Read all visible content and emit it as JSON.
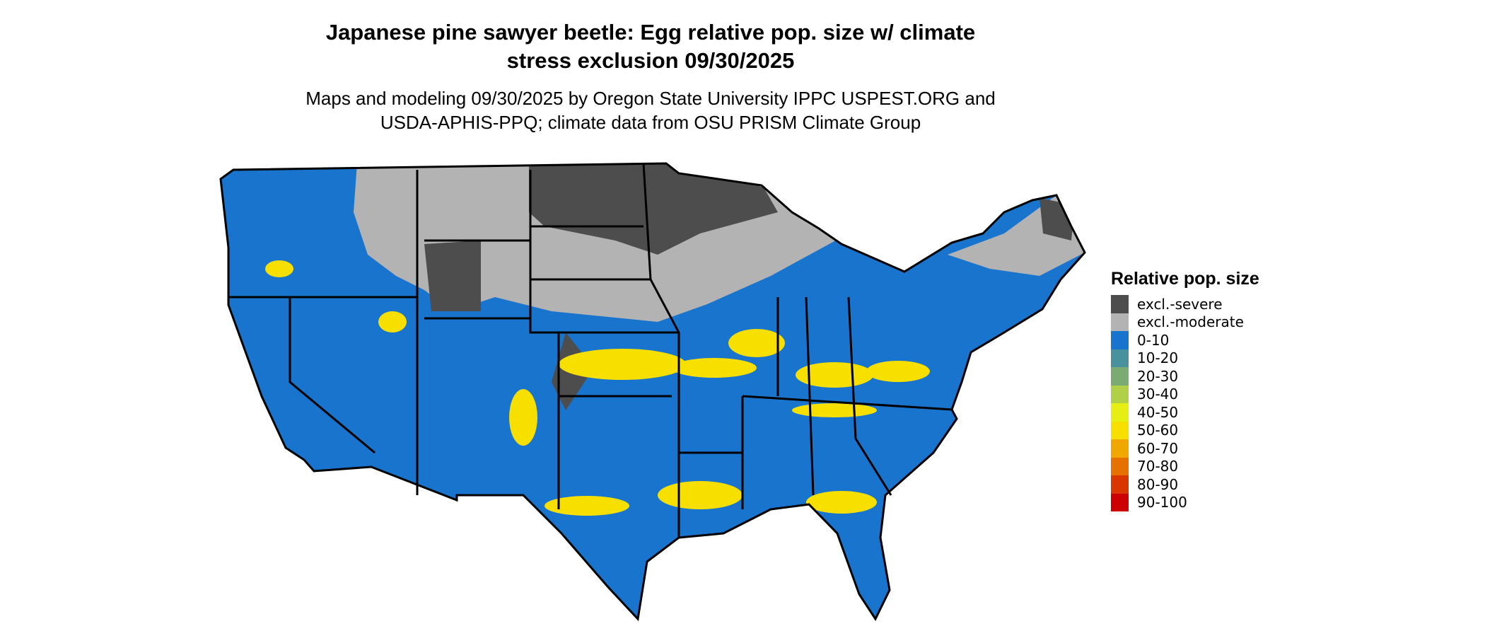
{
  "title_line1": "Japanese pine sawyer beetle: Egg relative pop. size w/ climate",
  "title_line2": "stress exclusion 09/30/2025",
  "subtitle_line1": "Maps and modeling 09/30/2025 by Oregon State University IPPC USPEST.ORG and",
  "subtitle_line2": "USDA-APHIS-PPQ; climate data from OSU PRISM Climate Group",
  "legend": {
    "title": "Relative pop. size",
    "items": [
      {
        "label": "excl.-severe",
        "color": "#4d4d4d"
      },
      {
        "label": "excl.-moderate",
        "color": "#b3b3b3"
      },
      {
        "label": "0-10",
        "color": "#1874cd"
      },
      {
        "label": "10-20",
        "color": "#4a919e"
      },
      {
        "label": "20-30",
        "color": "#7aab72"
      },
      {
        "label": "30-40",
        "color": "#b2d047"
      },
      {
        "label": "40-50",
        "color": "#e5ef14"
      },
      {
        "label": "50-60",
        "color": "#f7df00"
      },
      {
        "label": "60-70",
        "color": "#f0a800"
      },
      {
        "label": "70-80",
        "color": "#e57200"
      },
      {
        "label": "80-90",
        "color": "#d93600"
      },
      {
        "label": "90-100",
        "color": "#cc0000"
      }
    ]
  }
}
